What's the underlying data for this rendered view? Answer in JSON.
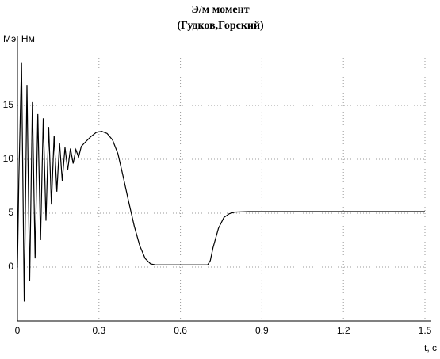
{
  "chart_data": {
    "type": "line",
    "title": "Э/м момент",
    "subtitle": "(Гудков,Горский)",
    "y_label": "Мэ, Нм",
    "x_label": "t, c",
    "x": [
      0,
      0.005,
      0.015,
      0.025,
      0.035,
      0.045,
      0.055,
      0.065,
      0.075,
      0.085,
      0.095,
      0.105,
      0.115,
      0.125,
      0.135,
      0.145,
      0.155,
      0.165,
      0.175,
      0.185,
      0.195,
      0.205,
      0.215,
      0.225,
      0.235,
      0.25,
      0.27,
      0.29,
      0.31,
      0.33,
      0.35,
      0.37,
      0.39,
      0.41,
      0.43,
      0.45,
      0.47,
      0.49,
      0.51,
      0.6,
      0.7,
      0.71,
      0.72,
      0.74,
      0.76,
      0.78,
      0.8,
      0.85,
      1.5
    ],
    "values": [
      0,
      8,
      19,
      -3.2,
      16.9,
      -1.3,
      15.3,
      0.8,
      14.2,
      2.5,
      13.8,
      4.3,
      13.0,
      5.8,
      12.2,
      7.0,
      11.5,
      8.0,
      11.1,
      9.0,
      11.0,
      9.6,
      10.9,
      10.2,
      11.2,
      11.6,
      12.1,
      12.5,
      12.6,
      12.4,
      11.8,
      10.5,
      8.3,
      6.0,
      3.8,
      2.0,
      0.8,
      0.3,
      0.2,
      0.2,
      0.2,
      0.6,
      1.8,
      3.6,
      4.6,
      4.95,
      5.1,
      5.15,
      5.15
    ],
    "color": "#000000",
    "xlim": [
      0,
      1.5
    ],
    "xticks": [
      0,
      0.3,
      0.6,
      0.9,
      1.2,
      1.5
    ],
    "ylim": [
      -5,
      20
    ],
    "yticks": [
      0,
      5,
      10,
      15
    ],
    "grid": true
  }
}
